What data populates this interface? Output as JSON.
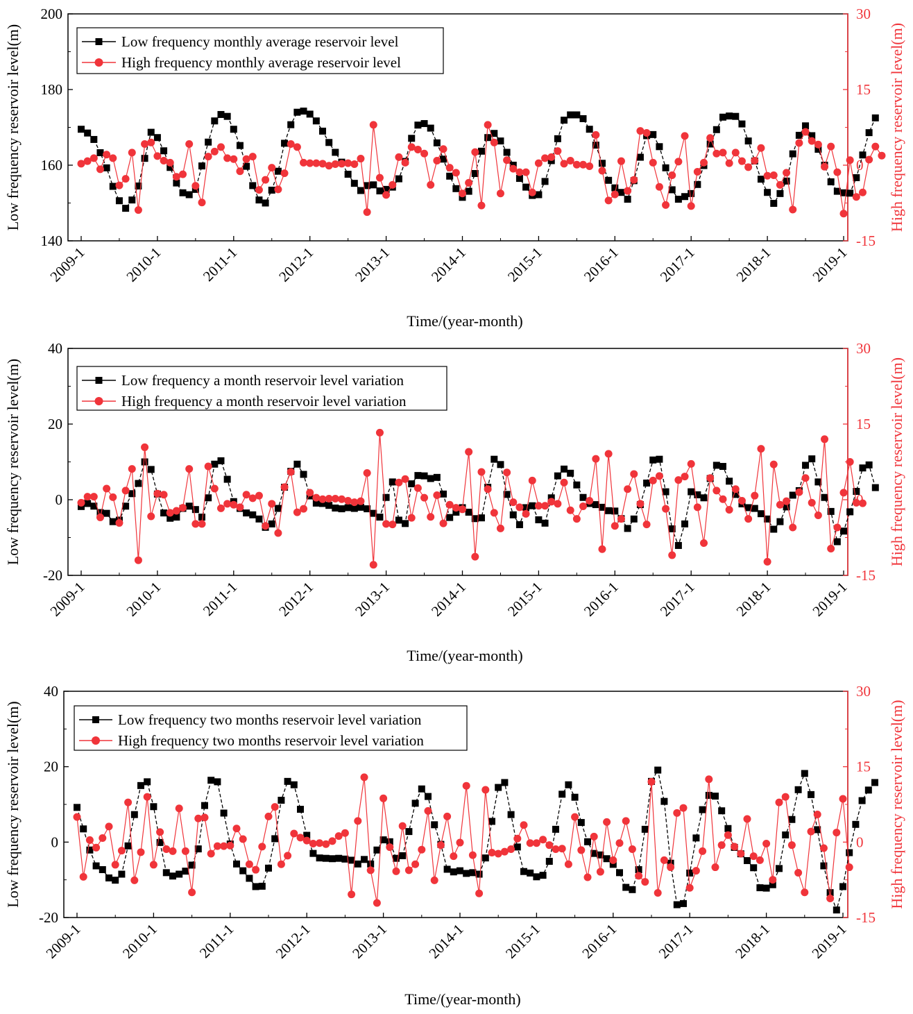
{
  "colors": {
    "low": "#000000",
    "high": "#f0343a",
    "axis": "#000000"
  },
  "chart_data": [
    {
      "type": "line",
      "legend_position": "top-left",
      "x_ticks": [
        "2009-1",
        "2010-1",
        "2011-1",
        "2012-1",
        "2013-1",
        "2014-1",
        "2015-1",
        "2016-1",
        "2017-1",
        "2018-1",
        "2019-1"
      ],
      "xlabel": "Time/(year-month)",
      "ylabel_left": "Low frequency reservoir level(m)",
      "ylabel_right": "High frequency reservoir level(m)",
      "ylim_left": [
        140,
        200
      ],
      "ylim_right": [
        -15,
        30
      ],
      "yticks_left": [
        "140",
        "160",
        "180",
        "200"
      ],
      "yticks_right": [
        "-15",
        "0",
        "15",
        "30"
      ],
      "series": [
        {
          "name": "Low frequency monthly average reservoir level",
          "axis": "left",
          "marker": "square",
          "color": "#000000",
          "values": [
            169.5,
            168.5,
            166.8,
            163.3,
            159.3,
            154.4,
            150.6,
            148.6,
            150.8,
            154.5,
            161.8,
            168.7,
            167.3,
            163.8,
            159.4,
            155.3,
            152.7,
            152.2,
            153.6,
            159.8,
            166.1,
            171.7,
            173.4,
            172.9,
            169.5,
            165.2,
            159.7,
            154.6,
            150.8,
            150.0,
            153.4,
            158.4,
            165.8,
            170.7,
            174.0,
            174.3,
            173.5,
            171.7,
            169.0,
            166.0,
            163.4,
            160.8,
            157.6,
            155.2,
            153.3,
            154.6,
            154.8,
            153.2,
            153.6,
            154.2,
            156.4,
            161.0,
            167.1,
            170.6,
            171.0,
            169.8,
            165.9,
            161.6,
            157.1,
            153.8,
            151.5,
            153.1,
            157.8,
            163.7,
            167.3,
            168.4,
            166.4,
            163.4,
            160.0,
            156.5,
            154.2,
            152.0,
            152.2,
            155.7,
            161.2,
            167.0,
            171.9,
            173.3,
            173.3,
            172.3,
            169.5,
            165.3,
            160.5,
            156.0,
            154.0,
            152.8,
            151.0,
            155.9,
            162.1,
            167.8,
            168.1,
            164.9,
            159.3,
            153.5,
            151.0,
            151.7,
            152.5,
            154.9,
            159.9,
            165.6,
            169.4,
            172.7,
            173.0,
            172.9,
            170.9,
            166.4,
            161.1,
            156.3,
            152.8,
            149.9,
            152.5,
            155.8,
            163.0,
            167.9,
            170.4,
            167.8,
            164.2,
            160.0,
            155.6,
            153.1,
            152.7,
            152.6,
            156.7,
            162.7,
            168.6,
            172.5
          ]
        },
        {
          "name": "High frequency monthly average reservoir level",
          "axis": "right",
          "marker": "circle",
          "color": "#f0343a",
          "values": [
            0.3,
            0.8,
            1.4,
            -0.8,
            2.1,
            1.4,
            -4.0,
            -2.7,
            2.5,
            -8.9,
            4.2,
            4.5,
            1.8,
            0.9,
            0.5,
            -2.3,
            -1.8,
            4.2,
            -4.1,
            -7.4,
            1.7,
            2.7,
            3.6,
            1.4,
            1.2,
            -1.2,
            1.2,
            1.7,
            -4.9,
            -2.9,
            -0.5,
            -4.8,
            -1.6,
            4.2,
            3.6,
            0.5,
            0.4,
            0.4,
            0.3,
            -0.1,
            0.2,
            0.3,
            0.4,
            0.2,
            1.3,
            -9.3,
            8.0,
            -2.5,
            -5.9,
            -3.9,
            1.6,
            0.5,
            3.6,
            3.1,
            2.3,
            -3.9,
            0.9,
            3.2,
            -0.5,
            -1.5,
            -5.6,
            -3.5,
            2.6,
            -8.0,
            8.0,
            4.5,
            -5.6,
            1.0,
            -0.7,
            -1.4,
            -1.4,
            -5.4,
            0.4,
            1.4,
            1.6,
            2.8,
            0.3,
            0.9,
            0.1,
            0.1,
            -0.2,
            6.0,
            -1.1,
            -7.0,
            -5.8,
            0.8,
            -5.1,
            -2.9,
            6.8,
            6.4,
            0.5,
            -4.3,
            -7.9,
            -2.0,
            0.7,
            5.8,
            -8.1,
            -1.3,
            0.5,
            5.4,
            2.3,
            2.5,
            0.4,
            2.5,
            0.8,
            -0.4,
            0.9,
            3.4,
            -2.1,
            -2.0,
            -3.9,
            -1.5,
            -8.8,
            4.4,
            6.6,
            4.8,
            4.1,
            -0.3,
            3.7,
            -1.4,
            -9.6,
            1.0,
            -6.3,
            -5.4,
            1.1,
            3.7,
            1.9
          ]
        }
      ]
    },
    {
      "type": "line",
      "legend_position": "top-left",
      "x_ticks": [
        "2009-1",
        "2010-1",
        "2011-1",
        "2012-1",
        "2013-1",
        "2014-1",
        "2015-1",
        "2016-1",
        "2017-1",
        "2018-1",
        "2019-1"
      ],
      "xlabel": "Time/(year-month)",
      "ylabel_left": "Low frequency reservoir level(m)",
      "ylabel_right": "High frequency reservoir level(m)",
      "ylim_left": [
        -20,
        40
      ],
      "ylim_right": [
        -15,
        30
      ],
      "yticks_left": [
        "-20",
        "0",
        "20",
        "40"
      ],
      "yticks_right": [
        "-15",
        "0",
        "15",
        "30"
      ],
      "series": [
        {
          "name": "Low frequency a month reservoir level variation",
          "axis": "left",
          "marker": "square",
          "color": "#000000",
          "values": [
            -1.8,
            -1.0,
            -1.7,
            -3.4,
            -3.6,
            -5.8,
            -5.4,
            -1.7,
            1.6,
            4.3,
            10.0,
            8.0,
            1.5,
            -3.5,
            -4.9,
            -4.6,
            -2.3,
            -1.7,
            -2.6,
            -4.6,
            0.5,
            9.4,
            10.3,
            5.4,
            -0.5,
            -2.3,
            -3.5,
            -4.0,
            -5.1,
            -7.3,
            -6.4,
            -2.3,
            3.3,
            7.5,
            9.4,
            6.7,
            1.0,
            -0.9,
            -1.0,
            -1.5,
            -2.2,
            -2.4,
            -2.1,
            -2.3,
            -2.0,
            -2.4,
            -3.6,
            -4.6,
            0.6,
            4.7,
            -5.4,
            -6.3,
            4.2,
            6.4,
            6.3,
            5.6,
            5.9,
            1.5,
            -4.7,
            -3.3,
            -2.1,
            -3.3,
            -5.0,
            -4.8,
            3.3,
            10.7,
            9.3,
            1.4,
            -4.0,
            -6.6,
            -2.1,
            -1.6,
            -5.3,
            -6.2,
            0.5,
            6.3,
            8.1,
            7.0,
            3.9,
            0.6,
            -1.0,
            -1.3,
            -2.0,
            -2.9,
            -3.0,
            -5.0,
            -7.6,
            -5.1,
            -1.3,
            4.4,
            10.5,
            10.7,
            2.1,
            -7.7,
            -12.1,
            -6.4,
            2.1,
            1.3,
            0.5,
            5.6,
            9.1,
            8.8,
            4.9,
            1.4,
            -1.1,
            -2.1,
            -2.3,
            -3.7,
            -5.1,
            -7.8,
            -5.8,
            -1.9,
            1.2,
            2.4,
            9.1,
            10.8,
            4.7,
            0.6,
            -3.1,
            -11.1,
            -8.3,
            -3.2,
            2.2,
            8.4,
            9.2,
            3.2
          ]
        },
        {
          "name": "High frequency a month reservoir level variation",
          "axis": "right",
          "marker": "circle",
          "color": "#f0343a",
          "values": [
            -0.6,
            0.6,
            0.6,
            -3.5,
            2.2,
            0.5,
            -4.6,
            1.8,
            6.1,
            -12.0,
            10.4,
            -3.3,
            1.2,
            1.0,
            -2.6,
            -2.2,
            -1.6,
            6.1,
            -4.8,
            -4.8,
            6.6,
            2.2,
            -1.7,
            -0.8,
            -1.0,
            -1.5,
            1.0,
            0.3,
            0.8,
            -5.2,
            -0.8,
            -6.6,
            2.5,
            5.5,
            -2.5,
            -1.8,
            1.4,
            0.4,
            0.1,
            0.2,
            0.2,
            0.1,
            -0.2,
            -0.5,
            -0.3,
            5.3,
            -12.9,
            13.3,
            -4.8,
            -4.9,
            3.4,
            4.1,
            -3.6,
            2.3,
            0.4,
            -3.4,
            0.9,
            -4.7,
            -1.0,
            -1.6,
            -1.9,
            9.5,
            -11.3,
            5.5,
            2.1,
            -2.6,
            -5.7,
            5.4,
            -0.5,
            -1.5,
            -2.8,
            3.8,
            -1.2,
            -1.2,
            -0.4,
            -0.8,
            3.4,
            -2.1,
            -3.8,
            -1.3,
            -0.2,
            8.1,
            -9.8,
            9.1,
            -5.2,
            -3.8,
            2.1,
            5.1,
            -0.8,
            -4.9,
            3.8,
            4.7,
            -1.8,
            -11.0,
            3.9,
            4.6,
            7.1,
            -1.5,
            -8.6,
            4.3,
            1.8,
            0.1,
            -2.0,
            2.1,
            -0.2,
            -3.8,
            0.8,
            10.1,
            -12.3,
            7.0,
            -1.0,
            -0.3,
            -5.5,
            1.5,
            4.3,
            -0.6,
            -3.1,
            12.0,
            -9.7,
            -5.5,
            1.4,
            7.5,
            -0.6,
            -0.7
          ]
        }
      ]
    },
    {
      "type": "line",
      "legend_position": "top-left",
      "x_ticks": [
        "2009-1",
        "2010-1",
        "2011-1",
        "2012-1",
        "2013-1",
        "2014-1",
        "2015-1",
        "2016-1",
        "2017-1",
        "2018-1",
        "2019-1"
      ],
      "xlabel": "Time/(year-month)",
      "ylabel_left": "Low frequency reservoir level(m)",
      "ylabel_right": "High frequency reservoir level(m)",
      "ylim_left": [
        -20,
        40
      ],
      "ylim_right": [
        -15,
        30
      ],
      "yticks_left": [
        "-20",
        "0",
        "20",
        "40"
      ],
      "yticks_right": [
        "-15",
        "0",
        "15",
        "30"
      ],
      "series": [
        {
          "name": "Low frequency two months reservoir level variation",
          "axis": "left",
          "marker": "square",
          "color": "#000000",
          "values": [
            9.2,
            3.5,
            -2.1,
            -6.3,
            -7.3,
            -9.5,
            -10.1,
            -8.5,
            -1.0,
            7.3,
            15.0,
            16.0,
            9.4,
            -0.1,
            -8.1,
            -9.0,
            -8.5,
            -7.7,
            -6.1,
            -1.8,
            9.7,
            16.4,
            16.0,
            7.7,
            -0.5,
            -5.8,
            -7.6,
            -9.6,
            -11.8,
            -11.7,
            -6.9,
            0.9,
            11.1,
            16.1,
            15.2,
            8.7,
            1.8,
            -3.0,
            -4.2,
            -4.3,
            -4.4,
            -4.3,
            -4.5,
            -4.8,
            -5.8,
            -4.6,
            -5.8,
            -2.1,
            0.6,
            0.1,
            -4.3,
            -3.6,
            2.8,
            10.3,
            14.1,
            12.1,
            4.6,
            -0.6,
            -7.2,
            -7.9,
            -7.6,
            -8.3,
            -8.1,
            -8.5,
            -4.2,
            5.5,
            14.5,
            15.8,
            7.3,
            -1.3,
            -7.8,
            -8.2,
            -9.2,
            -8.8,
            -5.1,
            3.4,
            12.7,
            15.2,
            11.9,
            5.2,
            0.1,
            -3.0,
            -3.4,
            -4.4,
            -5.9,
            -8.1,
            -12.0,
            -12.6,
            -7.3,
            3.4,
            16.1,
            19.1,
            10.8,
            -5.6,
            -16.6,
            -16.3,
            -8.2,
            1.1,
            8.6,
            12.4,
            12.2,
            8.3,
            3.6,
            -1.4,
            -3.1,
            -4.9,
            -6.8,
            -12.1,
            -12.2,
            -11.3,
            -7.0,
            1.9,
            6.0,
            13.9,
            18.2,
            12.6,
            3.3,
            -6.3,
            -13.4,
            -18.0,
            -11.8,
            -2.8,
            4.7,
            11.0,
            13.8,
            15.8
          ]
        },
        {
          "name": "High frequency two months reservoir level variation",
          "axis": "right",
          "marker": "circle",
          "color": "#f0343a",
          "values": [
            5.0,
            -6.9,
            0.4,
            -1.1,
            0.8,
            3.1,
            -4.5,
            -1.7,
            7.9,
            -7.6,
            -2.0,
            9.0,
            -4.5,
            2.0,
            -1.4,
            -1.8,
            6.7,
            -1.8,
            -10.0,
            4.7,
            4.9,
            -2.3,
            -0.8,
            -0.8,
            -0.7,
            2.7,
            0.6,
            -4.4,
            -5.5,
            -0.9,
            5.1,
            7.0,
            -4.4,
            -2.7,
            1.7,
            0.9,
            0.3,
            -0.3,
            -0.2,
            -0.4,
            0.2,
            1.2,
            1.8,
            -10.4,
            4.2,
            12.9,
            -5.6,
            -12.1,
            8.7,
            -1.0,
            -5.8,
            3.2,
            -5.6,
            -4.4,
            -1.5,
            6.2,
            -7.6,
            -0.6,
            5.1,
            -2.8,
            -0.1,
            11.2,
            -2.6,
            -10.2,
            10.4,
            -2.1,
            -2.3,
            -1.9,
            -1.4,
            0.7,
            3.4,
            -0.2,
            -0.2,
            0.5,
            -0.6,
            -1.4,
            -1.3,
            -4.4,
            5.0,
            -1.6,
            -7.0,
            1.1,
            -5.9,
            4.0,
            -3.6,
            -0.2,
            4.2,
            -1.4,
            -6.7,
            -7.9,
            12.0,
            -10.1,
            -3.6,
            -5.0,
            5.8,
            6.8,
            -9.1,
            -5.7,
            -1.8,
            12.5,
            -5.0,
            -0.6,
            1.4,
            -0.9,
            -2.3,
            4.6,
            -2.8,
            -3.6,
            -0.3,
            -7.5,
            7.9,
            9.0,
            -0.6,
            -6.1,
            -10.0,
            2.1,
            5.5,
            -1.2,
            -11.2,
            1.9,
            8.6,
            -5.0
          ]
        }
      ]
    }
  ]
}
